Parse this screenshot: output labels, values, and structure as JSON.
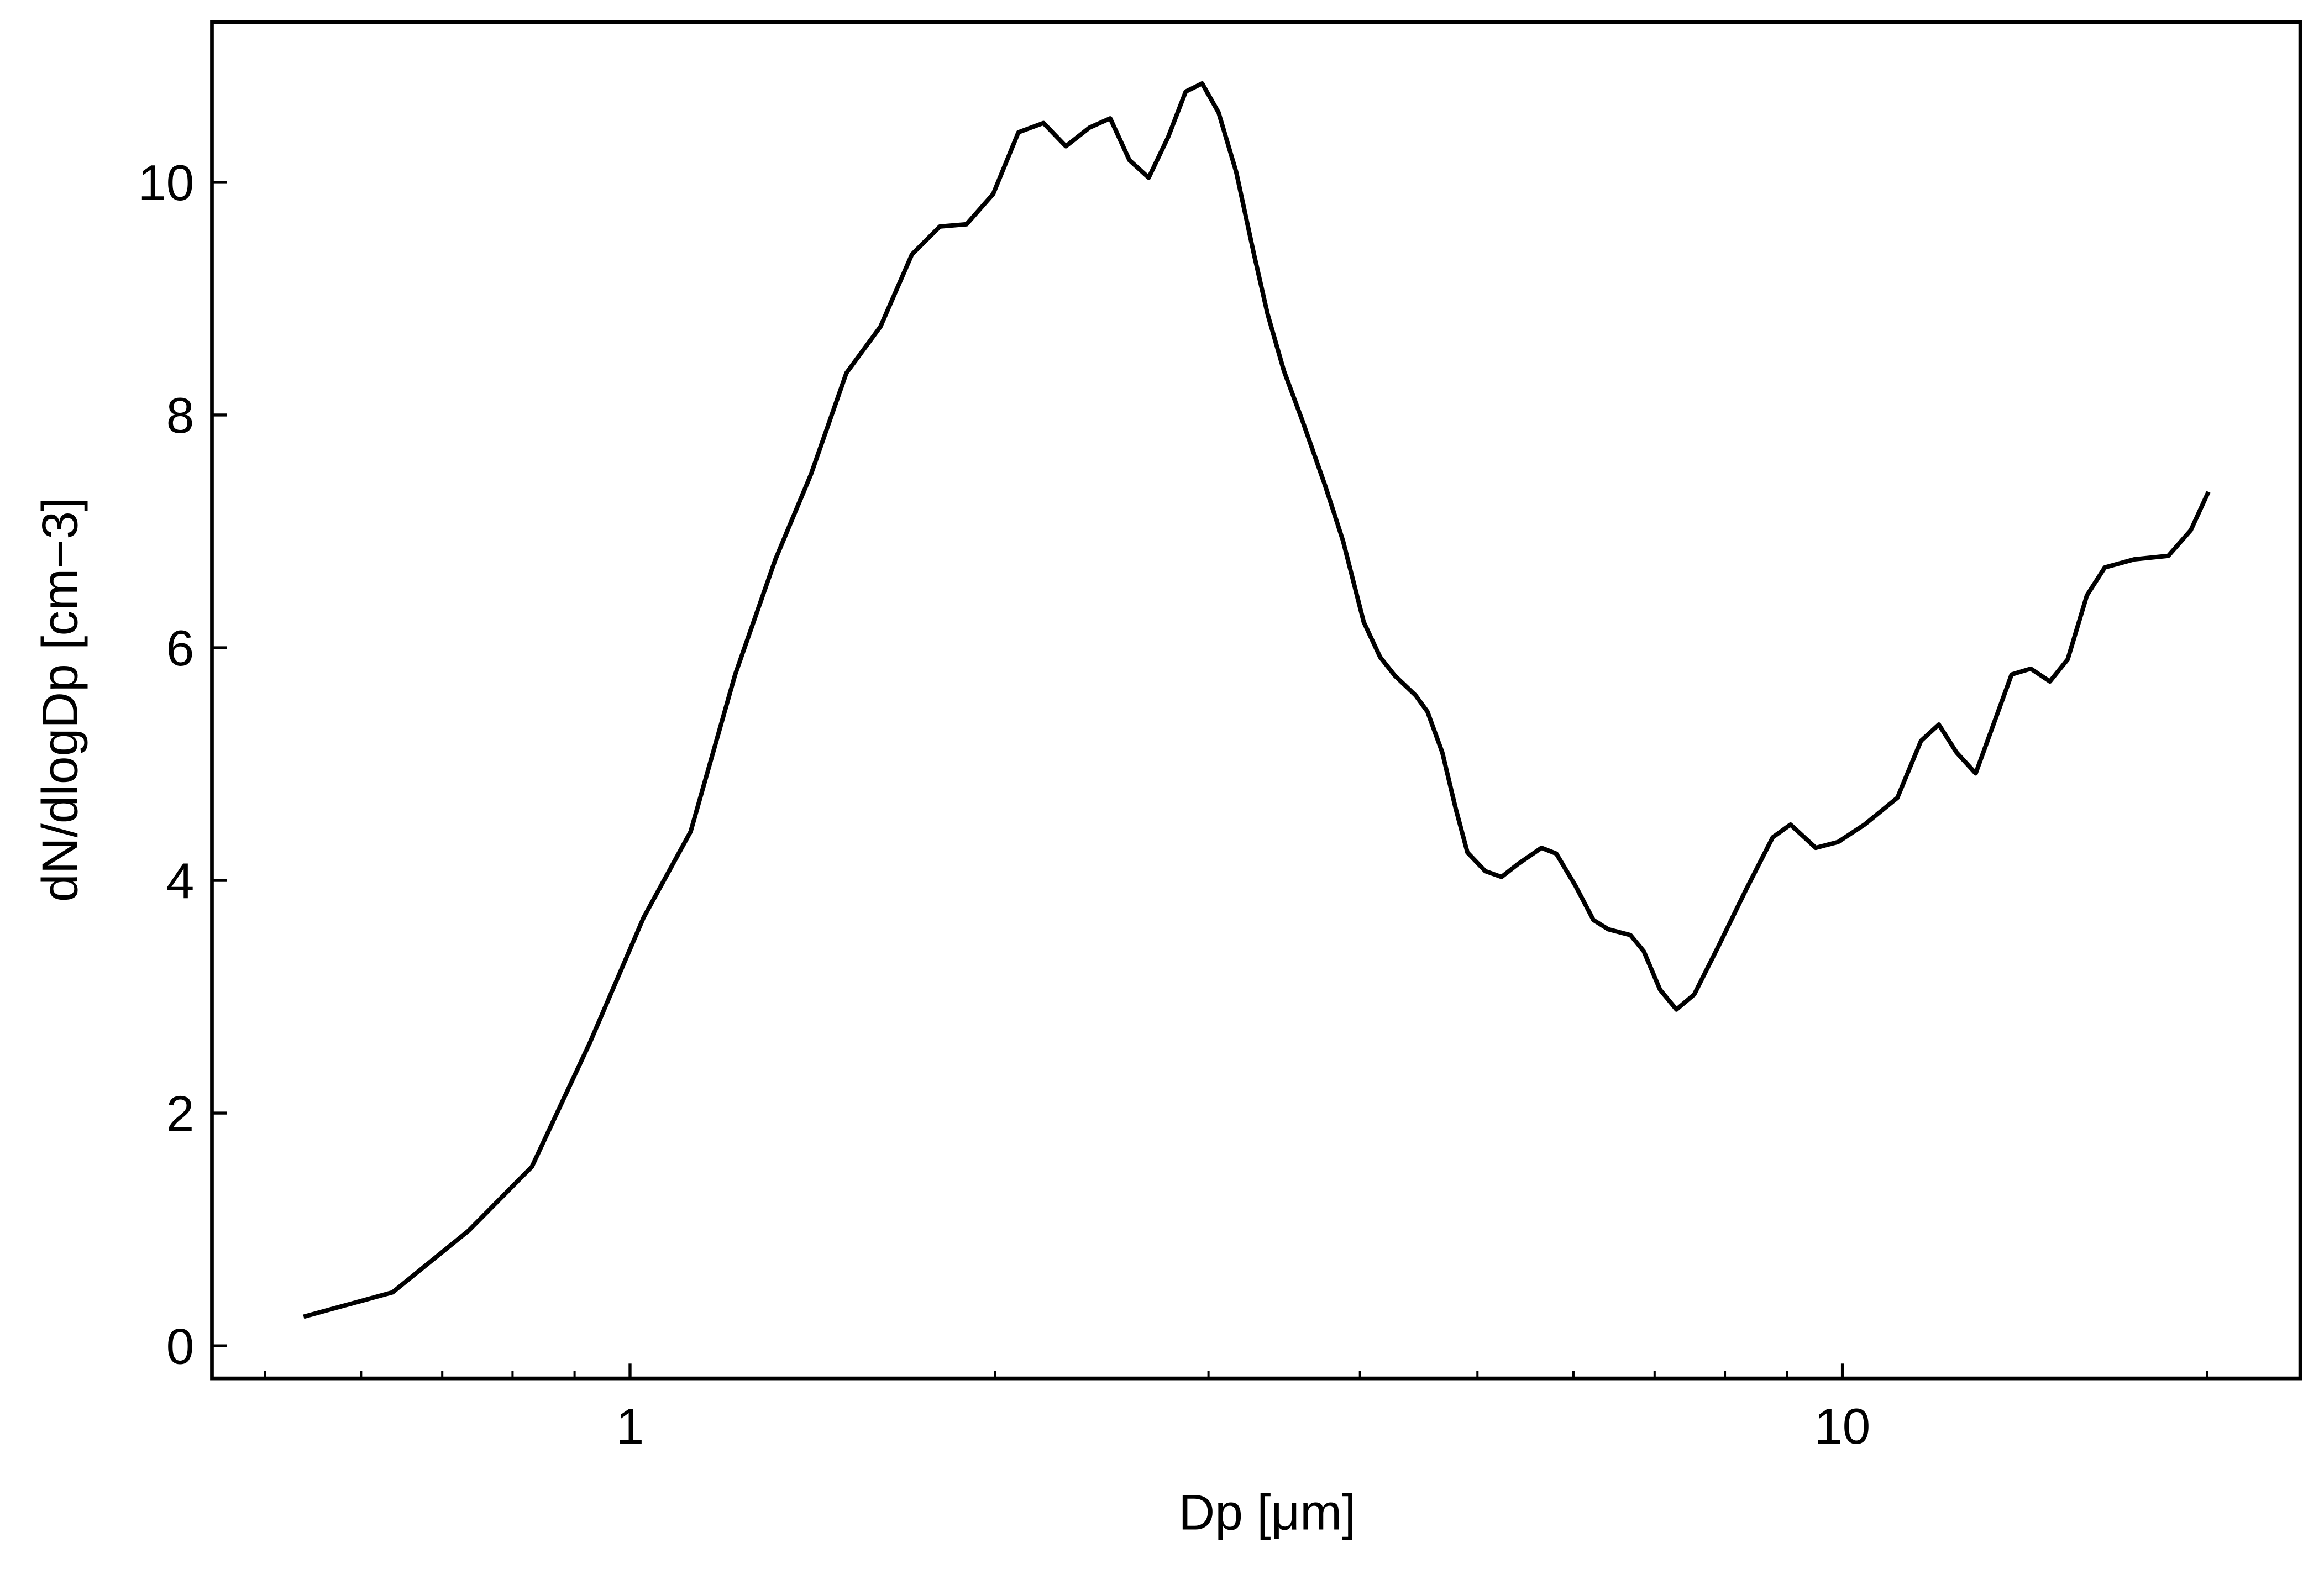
{
  "chart_data": {
    "type": "line",
    "xlabel": "Dp [μm]",
    "ylabel": "dN/dlogDp [cm−3]",
    "xscale": "log",
    "xlim": [
      0.452,
      23.86
    ],
    "ylim": [
      -0.28,
      11.376
    ],
    "xticks": [
      1,
      10
    ],
    "xminorticks": [
      0.5,
      0.6,
      0.7,
      0.8,
      0.9,
      2,
      3,
      4,
      5,
      6,
      7,
      8,
      9,
      20
    ],
    "yticks": [
      0,
      2,
      4,
      6,
      8,
      10
    ],
    "grid": false,
    "series": [
      {
        "color": "#000000",
        "x": [
          0.538,
          0.637,
          0.736,
          0.83,
          0.927,
          1.026,
          1.122,
          1.221,
          1.318,
          1.41,
          1.508,
          1.609,
          1.708,
          1.801,
          1.895,
          1.993,
          2.091,
          2.193,
          2.288,
          2.393,
          2.489,
          2.582,
          2.678,
          2.779,
          2.873,
          2.964,
          3.058,
          3.162,
          3.271,
          3.356,
          3.462,
          3.589,
          3.745,
          3.873,
          4.029,
          4.156,
          4.274,
          4.446,
          4.547,
          4.677,
          4.797,
          4.906,
          5.075,
          5.234,
          5.399,
          5.647,
          5.808,
          6.026,
          6.232,
          6.41,
          6.686,
          6.858,
          7.073,
          7.296,
          7.547,
          7.916,
          8.327,
          8.76,
          9.061,
          9.506,
          9.916,
          10.43,
          11.1,
          11.61,
          12.01,
          12.42,
          12.88,
          13.29,
          13.79,
          14.3,
          14.83,
          15.34,
          15.91,
          16.46,
          17.41,
          18.57,
          19.38,
          20.04
        ],
        "values": [
          0.25,
          0.46,
          0.99,
          1.54,
          2.61,
          3.68,
          4.42,
          5.77,
          6.76,
          7.49,
          8.36,
          8.76,
          9.38,
          9.62,
          9.64,
          9.9,
          10.43,
          10.51,
          10.31,
          10.47,
          10.55,
          10.19,
          10.04,
          10.39,
          10.78,
          10.85,
          10.6,
          10.09,
          9.38,
          8.87,
          8.38,
          7.94,
          7.39,
          6.92,
          6.22,
          5.92,
          5.76,
          5.59,
          5.45,
          5.1,
          4.62,
          4.24,
          4.08,
          4.03,
          4.14,
          4.28,
          4.23,
          3.95,
          3.66,
          3.58,
          3.53,
          3.39,
          3.06,
          2.89,
          3.02,
          3.45,
          3.92,
          4.37,
          4.48,
          4.28,
          4.33,
          4.48,
          4.71,
          5.2,
          5.34,
          5.1,
          4.92,
          5.31,
          5.77,
          5.82,
          5.71,
          5.9,
          6.45,
          6.69,
          6.76,
          6.79,
          7.01,
          7.34
        ]
      }
    ]
  }
}
